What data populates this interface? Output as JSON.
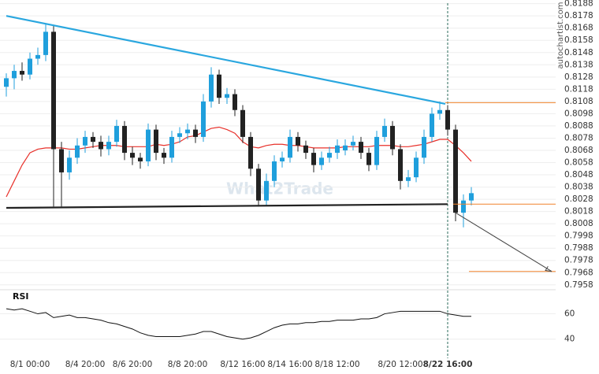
{
  "chart_data": {
    "type": "candlestick",
    "categories": [
      null,
      null,
      null,
      "8/1 00:00",
      null,
      null,
      null,
      null,
      null,
      null,
      "8/4 20:00",
      null,
      null,
      null,
      null,
      null,
      "8/6 20:00",
      null,
      null,
      null,
      null,
      null,
      null,
      "8/8 20:00",
      null,
      null,
      null,
      null,
      null,
      null,
      "8/12 16:00",
      null,
      null,
      null,
      null,
      null,
      "8/14 16:00",
      null,
      null,
      null,
      null,
      null,
      "8/18 12:00",
      null,
      null,
      null,
      null,
      null,
      null,
      null,
      "8/20 12:00",
      null,
      null,
      null,
      null,
      null,
      "8/22 16:00",
      null,
      null,
      null
    ],
    "marker_index": 56,
    "series": [
      {
        "name": "Price",
        "up_color": "#1f9fdc",
        "down_color": "#222222",
        "values": [
          [
            0.812,
            0.8131,
            0.8112,
            0.8127
          ],
          [
            0.8127,
            0.8138,
            0.8118,
            0.8133
          ],
          [
            0.8133,
            0.814,
            0.8125,
            0.813
          ],
          [
            0.813,
            0.8148,
            0.8126,
            0.8143
          ],
          [
            0.8143,
            0.8152,
            0.8138,
            0.8146
          ],
          [
            0.8146,
            0.8172,
            0.8141,
            0.8165
          ],
          [
            0.8165,
            0.817,
            0.8022,
            0.8069
          ],
          [
            0.8069,
            0.8075,
            0.8022,
            0.805
          ],
          [
            0.805,
            0.8068,
            0.8044,
            0.8062
          ],
          [
            0.8062,
            0.8078,
            0.8057,
            0.8072
          ],
          [
            0.8072,
            0.8084,
            0.8066,
            0.8079
          ],
          [
            0.8079,
            0.8083,
            0.807,
            0.8075
          ],
          [
            0.8075,
            0.808,
            0.8063,
            0.8069
          ],
          [
            0.8069,
            0.808,
            0.8064,
            0.8075
          ],
          [
            0.8075,
            0.8093,
            0.8071,
            0.8088
          ],
          [
            0.8088,
            0.8092,
            0.806,
            0.8066
          ],
          [
            0.8066,
            0.8071,
            0.8056,
            0.8062
          ],
          [
            0.8062,
            0.8066,
            0.8053,
            0.8059
          ],
          [
            0.8059,
            0.809,
            0.8055,
            0.8085
          ],
          [
            0.8085,
            0.8089,
            0.806,
            0.8066
          ],
          [
            0.8066,
            0.807,
            0.8057,
            0.8062
          ],
          [
            0.8062,
            0.8084,
            0.8058,
            0.8079
          ],
          [
            0.8079,
            0.8087,
            0.8074,
            0.8082
          ],
          [
            0.8082,
            0.809,
            0.8077,
            0.8085
          ],
          [
            0.8085,
            0.8089,
            0.8074,
            0.8079
          ],
          [
            0.8079,
            0.8114,
            0.8075,
            0.8108
          ],
          [
            0.8108,
            0.8136,
            0.8103,
            0.813
          ],
          [
            0.813,
            0.8134,
            0.8106,
            0.8111
          ],
          [
            0.8111,
            0.8119,
            0.8106,
            0.8114
          ],
          [
            0.8114,
            0.8118,
            0.8096,
            0.8101
          ],
          [
            0.8101,
            0.8105,
            0.8074,
            0.8079
          ],
          [
            0.8079,
            0.8083,
            0.8047,
            0.8053
          ],
          [
            0.8053,
            0.8057,
            0.8022,
            0.8027
          ],
          [
            0.8027,
            0.8049,
            0.8023,
            0.8043
          ],
          [
            0.8043,
            0.8064,
            0.8038,
            0.8059
          ],
          [
            0.8059,
            0.8067,
            0.8054,
            0.8062
          ],
          [
            0.8062,
            0.8085,
            0.8058,
            0.8079
          ],
          [
            0.8079,
            0.8083,
            0.8067,
            0.8072
          ],
          [
            0.8072,
            0.8076,
            0.8061,
            0.8066
          ],
          [
            0.8066,
            0.807,
            0.805,
            0.8056
          ],
          [
            0.8056,
            0.8067,
            0.8052,
            0.8062
          ],
          [
            0.8062,
            0.8071,
            0.8058,
            0.8066
          ],
          [
            0.8066,
            0.8077,
            0.8061,
            0.8072
          ],
          [
            0.8068,
            0.8077,
            0.8064,
            0.8072
          ],
          [
            0.8072,
            0.808,
            0.8068,
            0.8075
          ],
          [
            0.8075,
            0.8079,
            0.8061,
            0.8066
          ],
          [
            0.8066,
            0.807,
            0.8051,
            0.8056
          ],
          [
            0.8056,
            0.8084,
            0.8052,
            0.8079
          ],
          [
            0.8079,
            0.8094,
            0.8075,
            0.8088
          ],
          [
            0.8088,
            0.8092,
            0.8064,
            0.8069
          ],
          [
            0.8069,
            0.8073,
            0.8036,
            0.8043
          ],
          [
            0.8043,
            0.8052,
            0.8038,
            0.8046
          ],
          [
            0.8046,
            0.8067,
            0.8042,
            0.8062
          ],
          [
            0.8062,
            0.8085,
            0.8057,
            0.8079
          ],
          [
            0.8079,
            0.8103,
            0.8075,
            0.8098
          ],
          [
            0.8098,
            0.8108,
            0.8093,
            0.8101
          ],
          [
            0.8101,
            0.8105,
            0.808,
            0.8085
          ],
          [
            0.8085,
            0.8089,
            0.801,
            0.8017
          ],
          [
            0.8017,
            0.8032,
            0.8005,
            0.8027
          ],
          [
            0.8027,
            0.8038,
            0.8023,
            0.8033
          ]
        ]
      },
      {
        "name": "MA",
        "color": "#e8302a",
        "values": [
          0.803,
          0.8043,
          0.8056,
          0.8066,
          0.8069,
          0.807,
          0.807,
          0.807,
          0.8069,
          0.8069,
          0.807,
          0.8071,
          0.8072,
          0.8072,
          0.8072,
          0.8071,
          0.8071,
          0.8071,
          0.8071,
          0.8073,
          0.8072,
          0.8073,
          0.8075,
          0.8079,
          0.808,
          0.8083,
          0.8086,
          0.8087,
          0.8085,
          0.8082,
          0.8075,
          0.8071,
          0.807,
          0.8072,
          0.8073,
          0.8073,
          0.8072,
          0.8072,
          0.8071,
          0.807,
          0.807,
          0.807,
          0.807,
          0.8071,
          0.8071,
          0.8071,
          0.8071,
          0.8072,
          0.8072,
          0.8072,
          0.8071,
          0.8071,
          0.8072,
          0.8073,
          0.8075,
          0.8077,
          0.8077,
          0.8072,
          0.8066,
          0.8059
        ]
      }
    ],
    "ylim": [
      0.7954,
      0.8191
    ],
    "yticks": [
      0.8188,
      0.8178,
      0.8168,
      0.8158,
      0.8148,
      0.8138,
      0.8128,
      0.8118,
      0.8108,
      0.8098,
      0.8088,
      0.8078,
      0.8068,
      0.8058,
      0.8048,
      0.8038,
      0.8028,
      0.8018,
      0.8008,
      0.7998,
      0.7988,
      0.7978,
      0.7968,
      0.7958
    ],
    "trendlines": [
      {
        "color": "#2aa7df",
        "points": [
          [
            0,
            0.8178
          ],
          [
            55.7,
            0.8106
          ]
        ]
      },
      {
        "color": "#222222",
        "points": [
          [
            0,
            0.8021
          ],
          [
            56,
            0.8024
          ]
        ]
      }
    ],
    "levels": [
      {
        "value": 0.8107,
        "from": 55.7
      },
      {
        "value": 0.8024,
        "from": 56.7
      },
      {
        "value": 0.7969,
        "from": 58.7
      }
    ],
    "level_color": "#f0822a",
    "arrow": {
      "from": [
        57,
        0.8017
      ],
      "to": [
        69.2,
        0.7969
      ]
    },
    "rsi": {
      "label": "RSI",
      "color": "#111111",
      "ylim": [
        28,
        79
      ],
      "yticks": [
        40,
        60
      ],
      "values": [
        64,
        63,
        64,
        62,
        60,
        61,
        57,
        58,
        59,
        57,
        57,
        56,
        55,
        53,
        52,
        50,
        48,
        45,
        43,
        42,
        42,
        42,
        42,
        43,
        44,
        46,
        46,
        44,
        42,
        41,
        40,
        41,
        43,
        46,
        49,
        51,
        52,
        52,
        53,
        53,
        54,
        54,
        55,
        55,
        55,
        56,
        56,
        57,
        60,
        61,
        62,
        62,
        62,
        62,
        62,
        62,
        60,
        59,
        58,
        58
      ]
    },
    "watermarks": [
      "autochartist.com",
      "What2Trade"
    ]
  }
}
